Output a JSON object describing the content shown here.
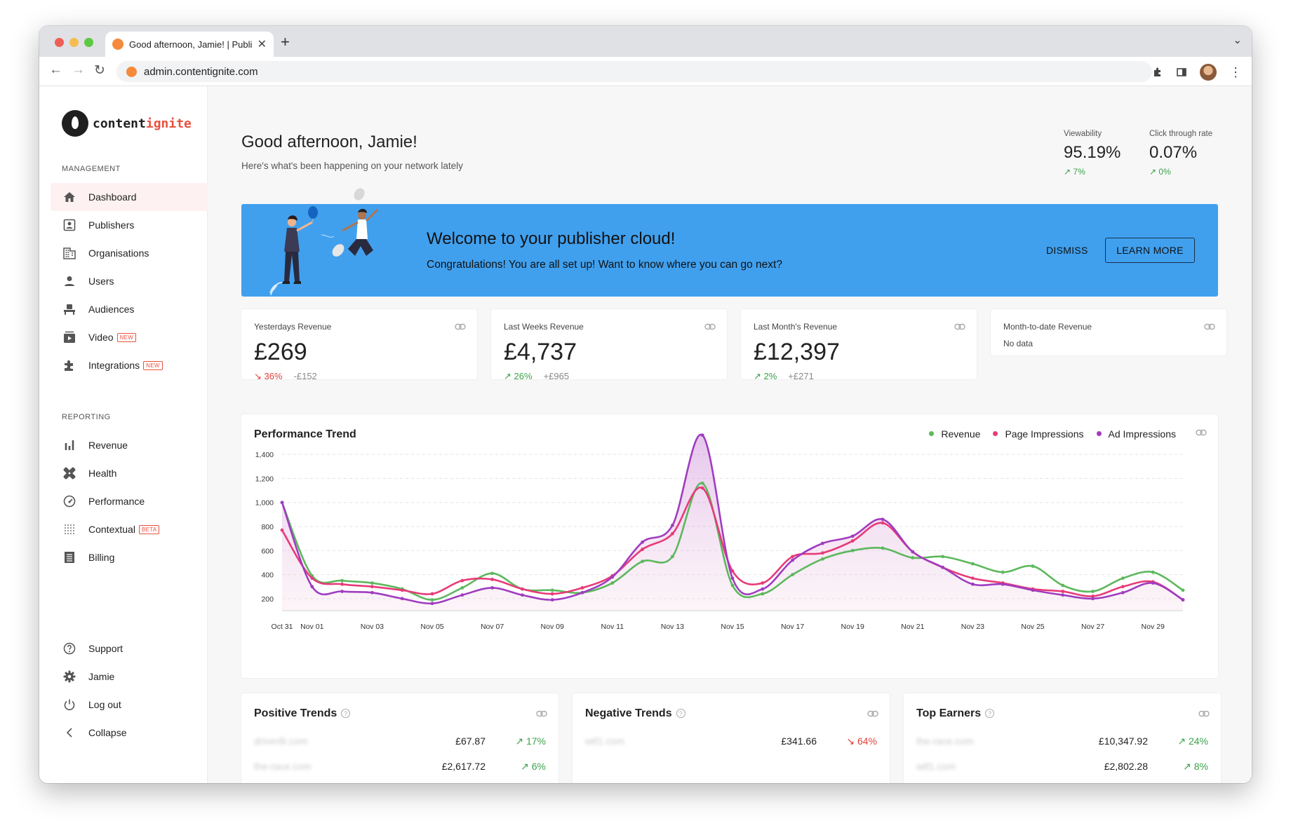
{
  "browser": {
    "tab_title": "Good afternoon, Jamie! | Publisher Cloud",
    "url": "admin.contentignite.com",
    "traffic_lights": [
      "#ee5f57",
      "#f5bd4f",
      "#5dc842"
    ]
  },
  "brand": {
    "part1": "content",
    "part2": "ignite",
    "accent": "#e8523f"
  },
  "sidebar": {
    "management_heading": "MANAGEMENT",
    "management_items": [
      {
        "label": "Dashboard",
        "icon": "home-icon",
        "active": true
      },
      {
        "label": "Publishers",
        "icon": "id-card-icon"
      },
      {
        "label": "Organisations",
        "icon": "building-icon"
      },
      {
        "label": "Users",
        "icon": "person-icon"
      },
      {
        "label": "Audiences",
        "icon": "audiences-icon"
      },
      {
        "label": "Video",
        "icon": "video-icon",
        "badge": "NEW"
      },
      {
        "label": "Integrations",
        "icon": "puzzle-icon",
        "badge": "NEW"
      }
    ],
    "reporting_heading": "REPORTING",
    "reporting_items": [
      {
        "label": "Revenue",
        "icon": "bar-chart-icon"
      },
      {
        "label": "Health",
        "icon": "bandage-icon"
      },
      {
        "label": "Performance",
        "icon": "speedometer-icon"
      },
      {
        "label": "Contextual",
        "icon": "dot-grid-icon",
        "badge": "BETA"
      },
      {
        "label": "Billing",
        "icon": "receipt-icon"
      }
    ],
    "footer_items": [
      {
        "label": "Support",
        "icon": "help-circle-icon"
      },
      {
        "label": "Jamie",
        "icon": "gear-icon"
      },
      {
        "label": "Log out",
        "icon": "power-icon"
      },
      {
        "label": "Collapse",
        "icon": "chevron-left-icon"
      }
    ]
  },
  "header": {
    "greeting": "Good afternoon, Jamie!",
    "subtitle": "Here's what's been happening on your network lately",
    "kpis": [
      {
        "label": "Viewability",
        "value": "95.19%",
        "change": "↗ 7%"
      },
      {
        "label": "Click through rate",
        "value": "0.07%",
        "change": "↗ 0%"
      }
    ]
  },
  "banner": {
    "title": "Welcome to your publisher cloud!",
    "text": "Congratulations! You are all set up! Want to know where you can go next?",
    "dismiss": "DISMISS",
    "learn_more": "LEARN MORE",
    "color": "#40a0ee"
  },
  "revenue_cards": [
    {
      "label": "Yesterdays Revenue",
      "value": "£269",
      "pct": "↘ 36%",
      "delta": "-£152",
      "dir": "down"
    },
    {
      "label": "Last Weeks Revenue",
      "value": "£4,737",
      "pct": "↗ 26%",
      "delta": "+£965",
      "dir": "up"
    },
    {
      "label": "Last Month's Revenue",
      "value": "£12,397",
      "pct": "↗ 2%",
      "delta": "+£271",
      "dir": "up"
    },
    {
      "label": "Month-to-date Revenue",
      "value": "",
      "no_data": "No data",
      "pct": "",
      "delta": "",
      "dir": "none"
    }
  ],
  "chart_data": {
    "type": "line",
    "title": "Performance Trend",
    "x": [
      "Oct 31",
      "Nov 01",
      "Nov 02",
      "Nov 03",
      "Nov 04",
      "Nov 05",
      "Nov 06",
      "Nov 07",
      "Nov 08",
      "Nov 09",
      "Nov 10",
      "Nov 11",
      "Nov 12",
      "Nov 13",
      "Nov 14",
      "Nov 15",
      "Nov 16",
      "Nov 17",
      "Nov 18",
      "Nov 19",
      "Nov 20",
      "Nov 21",
      "Nov 22",
      "Nov 23",
      "Nov 24",
      "Nov 25",
      "Nov 26",
      "Nov 27",
      "Nov 28",
      "Nov 29",
      "Nov 30"
    ],
    "x_tick_labels": [
      "Oct 31",
      "Nov 01",
      "Nov 03",
      "Nov 05",
      "Nov 07",
      "Nov 09",
      "Nov 11",
      "Nov 13",
      "Nov 15",
      "Nov 17",
      "Nov 19",
      "Nov 21",
      "Nov 23",
      "Nov 25",
      "Nov 27",
      "Nov 29"
    ],
    "y_ticks": [
      200,
      400,
      600,
      800,
      1000,
      1200,
      1400
    ],
    "y_tick_labels": [
      "200",
      "400",
      "600",
      "800",
      "1,000",
      "1,200",
      "1,400"
    ],
    "ylim": [
      100,
      1500
    ],
    "legend_position": "top-right",
    "series": [
      {
        "name": "Revenue",
        "color": "#5cb85c",
        "values": [
          1000,
          390,
          350,
          330,
          280,
          190,
          290,
          410,
          280,
          270,
          250,
          330,
          510,
          550,
          1160,
          310,
          240,
          400,
          530,
          600,
          620,
          540,
          550,
          490,
          420,
          470,
          310,
          260,
          370,
          420,
          270
        ]
      },
      {
        "name": "Page Impressions",
        "color": "#e83a78",
        "values": [
          770,
          370,
          320,
          300,
          270,
          240,
          350,
          360,
          280,
          240,
          290,
          390,
          610,
          740,
          1120,
          430,
          330,
          550,
          580,
          680,
          830,
          590,
          460,
          370,
          330,
          280,
          260,
          220,
          300,
          340,
          190
        ]
      },
      {
        "name": "Ad Impressions",
        "color": "#a03cc0",
        "values": [
          1000,
          300,
          260,
          250,
          200,
          160,
          230,
          290,
          230,
          190,
          250,
          380,
          670,
          810,
          1560,
          370,
          280,
          520,
          660,
          720,
          860,
          590,
          460,
          320,
          320,
          270,
          230,
          200,
          250,
          330,
          190
        ]
      }
    ]
  },
  "trends": [
    {
      "title": "Positive Trends",
      "rows": [
        {
          "site": "driver8i.com",
          "amount": "£67.87",
          "pct": "↗ 17%",
          "dir": "up"
        },
        {
          "site": "the-race.com",
          "amount": "£2,617.72",
          "pct": "↗ 6%",
          "dir": "up"
        }
      ]
    },
    {
      "title": "Negative Trends",
      "rows": [
        {
          "site": "wtf1.com",
          "amount": "£341.66",
          "pct": "↘ 64%",
          "dir": "down"
        }
      ]
    },
    {
      "title": "Top Earners",
      "rows": [
        {
          "site": "the-race.com",
          "amount": "£10,347.92",
          "pct": "↗ 24%",
          "dir": "up"
        },
        {
          "site": "wtf1.com",
          "amount": "£2,802.28",
          "pct": "↗ 8%",
          "dir": "up"
        }
      ]
    }
  ]
}
